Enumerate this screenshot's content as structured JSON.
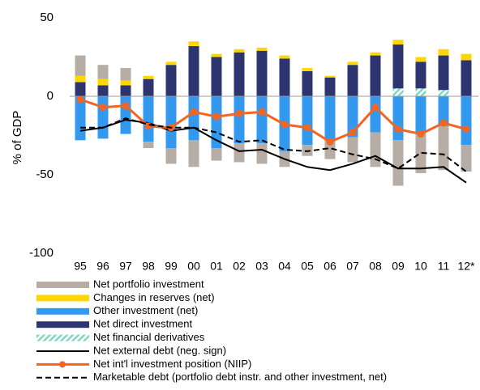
{
  "chart_data": {
    "type": "bar-line",
    "y_label": "% of GDP",
    "categories": [
      "95",
      "96",
      "97",
      "98",
      "99",
      "00",
      "01",
      "02",
      "03",
      "04",
      "05",
      "06",
      "07",
      "08",
      "09",
      "10",
      "11",
      "12*"
    ],
    "ylim": [
      -100,
      50
    ],
    "yticks": [
      -100,
      -50,
      0,
      50
    ],
    "series": [
      {
        "name": "Net portfolio investment",
        "kind": "bar",
        "color": "#b8ada4",
        "values": [
          13,
          9,
          8,
          -4,
          -10,
          -17,
          -8,
          -12,
          -13,
          -10,
          -7,
          -12,
          -16,
          -22,
          -29,
          -26,
          -28,
          -17
        ]
      },
      {
        "name": "Changes in reserves (net)",
        "kind": "bar",
        "color": "#ffd700",
        "values": [
          4,
          4,
          3,
          2,
          2,
          3,
          2,
          2,
          2,
          2,
          2,
          1,
          2,
          2,
          3,
          3,
          4,
          4
        ]
      },
      {
        "name": "Other investment (net)",
        "kind": "bar",
        "color": "#3399ee",
        "values": [
          -28,
          -27,
          -24,
          -29,
          -33,
          -28,
          -33,
          -30,
          -30,
          -35,
          -31,
          -28,
          -26,
          -23,
          -28,
          -23,
          -19,
          -31
        ]
      },
      {
        "name": "Net direct investment",
        "kind": "bar",
        "color": "#2e3470",
        "values": [
          9,
          7,
          7,
          11,
          20,
          32,
          25,
          28,
          29,
          24,
          16,
          12,
          20,
          26,
          28,
          17,
          22,
          23
        ]
      },
      {
        "name": "Net financial derivatives",
        "kind": "bar",
        "color": "#7fd6c2",
        "pattern": "hatch",
        "values": [
          null,
          null,
          null,
          null,
          null,
          null,
          null,
          null,
          null,
          null,
          null,
          null,
          null,
          null,
          5,
          5,
          4,
          null
        ]
      },
      {
        "name": "Net external debt (neg. sign)",
        "kind": "line",
        "color": "#000000",
        "style": "solid",
        "values": [
          -22,
          -20,
          -15,
          -17,
          -22,
          -20,
          -28,
          -35,
          -34,
          -40,
          -45,
          -47,
          -43,
          -38,
          -46,
          -46,
          -45,
          -55
        ]
      },
      {
        "name": "Net int'l investment position (NIIP)",
        "kind": "line",
        "color": "#f26522",
        "style": "solid",
        "markers": true,
        "values": [
          -2,
          -7,
          -6,
          -19,
          -20,
          -10,
          -13,
          -11,
          -10,
          -18,
          -20,
          -29,
          -23,
          -7,
          -21,
          -24,
          -17,
          -21
        ]
      },
      {
        "name": "Marketable debt (portfolio debt instr. and other investment, net)",
        "kind": "line",
        "color": "#000000",
        "style": "dashed",
        "values": [
          -20,
          -20,
          -14,
          -18,
          -20,
          -20,
          -23,
          -29,
          -28,
          -34,
          -35,
          -33,
          -37,
          -40,
          -46,
          -36,
          -37,
          -48
        ]
      }
    ]
  }
}
